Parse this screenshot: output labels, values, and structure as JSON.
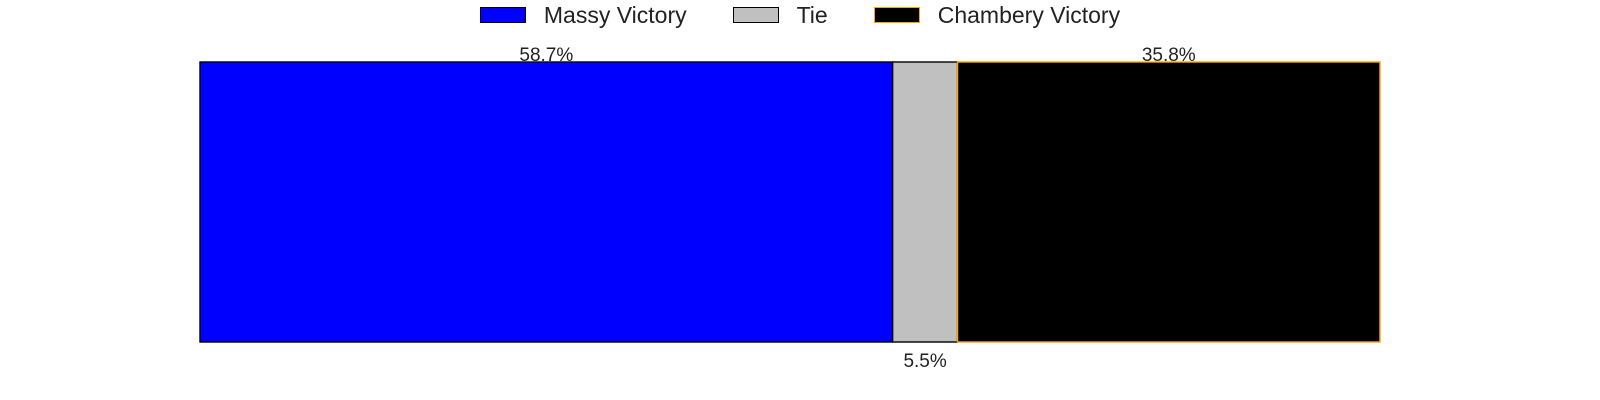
{
  "chart_data": {
    "type": "bar",
    "orientation": "horizontal",
    "stacked": true,
    "percent_scale": true,
    "categories": [
      ""
    ],
    "series": [
      {
        "name": "Massy Victory",
        "values": [
          58.7
        ],
        "color": "#0000ff",
        "edge_color": "#000000",
        "label": "58.7%",
        "label_position": "top"
      },
      {
        "name": "Tie",
        "values": [
          5.5
        ],
        "color": "#c0c0c0",
        "edge_color": "#000000",
        "label": "5.5%",
        "label_position": "bottom"
      },
      {
        "name": "Chambery Victory",
        "values": [
          35.8
        ],
        "color": "#000000",
        "edge_color": "#ffa500",
        "label": "35.8%",
        "label_position": "top"
      }
    ],
    "title": "",
    "xlabel": "",
    "ylabel": "",
    "xlim": [
      0,
      100
    ],
    "grid": false,
    "axes_visible": false,
    "legend": {
      "position": "top-center",
      "columns": 3
    }
  }
}
